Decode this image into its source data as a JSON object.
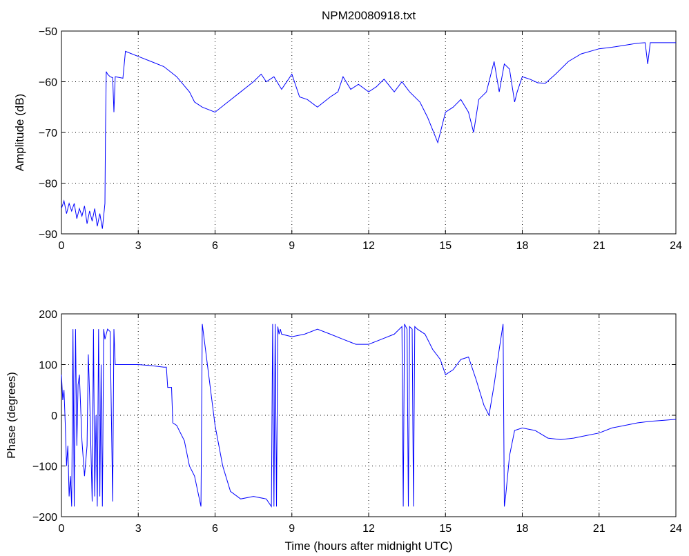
{
  "chart_data": [
    {
      "type": "line",
      "title": "NPM20080918.txt",
      "xlabel": "",
      "ylabel": "Amplitude (dB)",
      "xlim": [
        0,
        24
      ],
      "ylim": [
        -90,
        -50
      ],
      "xticks": [
        0,
        3,
        6,
        9,
        12,
        15,
        18,
        21,
        24
      ],
      "yticks": [
        -90,
        -80,
        -70,
        -60,
        -50
      ],
      "grid": true,
      "color": "#0000ff",
      "series": [
        {
          "x": [
            0,
            0.1,
            0.2,
            0.3,
            0.4,
            0.5,
            0.6,
            0.7,
            0.8,
            0.9,
            1.0,
            1.1,
            1.2,
            1.3,
            1.4,
            1.5,
            1.6,
            1.7,
            1.72,
            1.75,
            1.8,
            1.9,
            2.0,
            2.05,
            2.1,
            2.3,
            2.4,
            2.5,
            2.6,
            3.0,
            3.5,
            4.0,
            4.5,
            5.0,
            5.2,
            5.5,
            6.0,
            6.5,
            7.0,
            7.5,
            7.8,
            8.0,
            8.3,
            8.6,
            9.0,
            9.3,
            9.6,
            10.0,
            10.5,
            10.8,
            11.0,
            11.3,
            11.6,
            12.0,
            12.3,
            12.6,
            13.0,
            13.3,
            13.6,
            14.0,
            14.3,
            14.7,
            15.0,
            15.3,
            15.6,
            15.9,
            16.1,
            16.3,
            16.6,
            16.9,
            17.1,
            17.3,
            17.5,
            17.7,
            17.8,
            18.0,
            18.3,
            18.6,
            18.9,
            19.3,
            19.8,
            20.3,
            21.0,
            21.5,
            22.0,
            22.5,
            22.8,
            22.9,
            23.0,
            23.5,
            24.0
          ],
          "y": [
            -85,
            -83.5,
            -86,
            -84,
            -85.5,
            -84,
            -87,
            -85,
            -86.5,
            -84.5,
            -88,
            -85.5,
            -87.5,
            -85,
            -88.5,
            -86,
            -89,
            -84,
            -70,
            -58,
            -58.5,
            -59,
            -59.2,
            -66,
            -59,
            -59.2,
            -59.3,
            -54,
            -54.2,
            -55,
            -56,
            -57,
            -59,
            -62,
            -64,
            -65,
            -66,
            -64,
            -62,
            -60,
            -58.5,
            -60,
            -59,
            -61.5,
            -58.5,
            -63,
            -63.5,
            -65,
            -63,
            -62,
            -59,
            -61.5,
            -60.5,
            -62,
            -61,
            -59.5,
            -62,
            -60,
            -62,
            -64,
            -67,
            -72,
            -66,
            -65,
            -63.5,
            -66,
            -70,
            -63.5,
            -62,
            -56,
            -62,
            -56.5,
            -57.5,
            -64,
            -62,
            -59,
            -59.5,
            -60.2,
            -60.3,
            -58.5,
            -56,
            -54.5,
            -53.5,
            -53.2,
            -52.8,
            -52.4,
            -52.3,
            -56.5,
            -52.3,
            -52.3,
            -52.3
          ]
        }
      ]
    },
    {
      "type": "line",
      "title": "",
      "xlabel": "Time (hours after midnight UTC)",
      "ylabel": "Phase (degrees)",
      "xlim": [
        0,
        24
      ],
      "ylim": [
        -200,
        200
      ],
      "xticks": [
        0,
        3,
        6,
        9,
        12,
        15,
        18,
        21,
        24
      ],
      "yticks": [
        -200,
        -100,
        0,
        100,
        200
      ],
      "grid": true,
      "color": "#0000ff",
      "series": [
        {
          "x": [
            0,
            0.05,
            0.1,
            0.15,
            0.2,
            0.25,
            0.3,
            0.35,
            0.4,
            0.45,
            0.5,
            0.55,
            0.6,
            0.65,
            0.7,
            0.8,
            0.9,
            1.0,
            1.05,
            1.1,
            1.2,
            1.25,
            1.3,
            1.35,
            1.4,
            1.45,
            1.5,
            1.55,
            1.6,
            1.65,
            1.7,
            1.75,
            1.8,
            1.9,
            2.0,
            2.05,
            2.1,
            2.15,
            2.5,
            3.0,
            3.5,
            4.0,
            4.1,
            4.15,
            4.3,
            4.35,
            4.5,
            4.8,
            5.0,
            5.2,
            5.45,
            5.5,
            5.6,
            5.8,
            6.0,
            6.3,
            6.6,
            7.0,
            7.5,
            8.0,
            8.2,
            8.25,
            8.3,
            8.35,
            8.4,
            8.45,
            8.5,
            8.55,
            8.6,
            9.0,
            9.5,
            10.0,
            10.5,
            11.0,
            11.5,
            12.0,
            12.5,
            13.0,
            13.3,
            13.35,
            13.4,
            13.5,
            13.55,
            13.6,
            13.7,
            13.75,
            13.8,
            13.9,
            14.2,
            14.5,
            14.8,
            15.0,
            15.3,
            15.6,
            15.9,
            16.2,
            16.5,
            16.7,
            16.9,
            17.1,
            17.25,
            17.3,
            17.35,
            17.5,
            17.7,
            18.0,
            18.5,
            19.0,
            19.5,
            20.0,
            20.5,
            21.0,
            21.5,
            22.0,
            22.5,
            23.0,
            23.5,
            24.0
          ],
          "y": [
            80,
            30,
            50,
            -20,
            -100,
            -60,
            -160,
            -120,
            -180,
            170,
            -180,
            170,
            -60,
            60,
            80,
            -50,
            -120,
            -60,
            120,
            40,
            -170,
            170,
            -160,
            0,
            -180,
            170,
            -160,
            100,
            -180,
            170,
            150,
            160,
            170,
            165,
            -170,
            170,
            100,
            100,
            100,
            100,
            98,
            95,
            95,
            55,
            55,
            -15,
            -20,
            -50,
            -100,
            -120,
            -180,
            180,
            140,
            60,
            -20,
            -100,
            -150,
            -165,
            -160,
            -165,
            -180,
            180,
            -180,
            180,
            -180,
            175,
            160,
            170,
            160,
            155,
            160,
            170,
            160,
            150,
            140,
            140,
            150,
            160,
            175,
            -180,
            180,
            170,
            -180,
            175,
            170,
            -180,
            175,
            170,
            160,
            130,
            110,
            80,
            90,
            110,
            115,
            70,
            20,
            0,
            60,
            130,
            180,
            -180,
            -160,
            -80,
            -30,
            -25,
            -30,
            -45,
            -48,
            -45,
            -40,
            -35,
            -25,
            -20,
            -15,
            -12,
            -10,
            -8
          ]
        }
      ]
    }
  ]
}
